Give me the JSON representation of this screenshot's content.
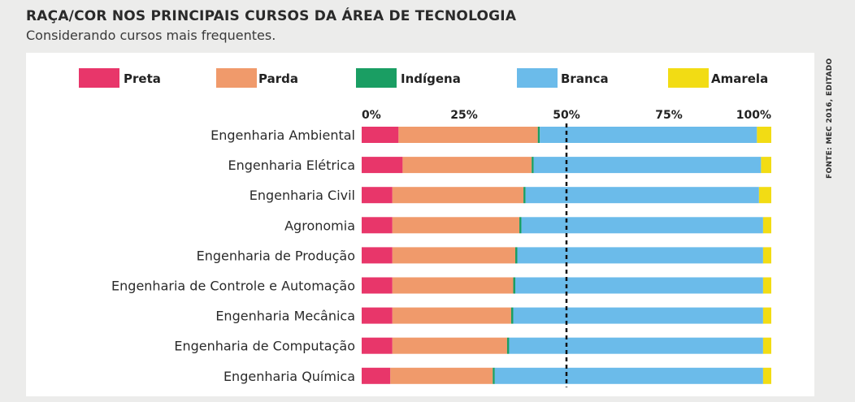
{
  "header": {
    "title": "RAÇA/COR NOS PRINCIPAIS CURSOS DA ÁREA DE TECNOLOGIA",
    "subtitle": "Considerando cursos mais frequentes."
  },
  "source": "FONTE: MEC 2016, EDITADO",
  "chart_data": {
    "type": "bar",
    "orientation": "horizontal",
    "stacked": true,
    "title": "RAÇA/COR NOS PRINCIPAIS CURSOS DA ÁREA DE TECNOLOGIA",
    "subtitle": "Considerando cursos mais frequentes.",
    "xlim": [
      0,
      100
    ],
    "x_ticks": [
      "0%",
      "25%",
      "50%",
      "75%",
      "100%"
    ],
    "x_tick_values": [
      0,
      25,
      50,
      75,
      100
    ],
    "reference_line": 50,
    "legend_position": "top",
    "categories": [
      "Engenharia Ambiental",
      "Engenharia Elétrica",
      "Engenharia Civil",
      "Agronomia",
      "Engenharia de Produção",
      "Engenharia de Controle e Automação",
      "Engenharia Mecânica",
      "Engenharia de Computação",
      "Engenharia Química"
    ],
    "series": [
      {
        "name": "Preta",
        "color": "#e8366a",
        "values": [
          9,
          10,
          7.5,
          7.5,
          7.5,
          7.5,
          7.5,
          7.5,
          7
        ]
      },
      {
        "name": "Parda",
        "color": "#f09a6b",
        "values": [
          34,
          31.5,
          32,
          31,
          30,
          29.5,
          29,
          28,
          25
        ]
      },
      {
        "name": "Indígena",
        "color": "#1a9e63",
        "values": [
          0.5,
          0.5,
          0.5,
          0.5,
          0.5,
          0.5,
          0.5,
          0.5,
          0.5
        ]
      },
      {
        "name": "Branca",
        "color": "#6bbbea",
        "values": [
          53,
          55.5,
          57,
          59,
          60,
          60.5,
          61,
          62,
          65.5
        ]
      },
      {
        "name": "Amarela",
        "color": "#f2dc14",
        "values": [
          3.5,
          2.5,
          3,
          2,
          2,
          2,
          2,
          2,
          2
        ]
      }
    ]
  }
}
